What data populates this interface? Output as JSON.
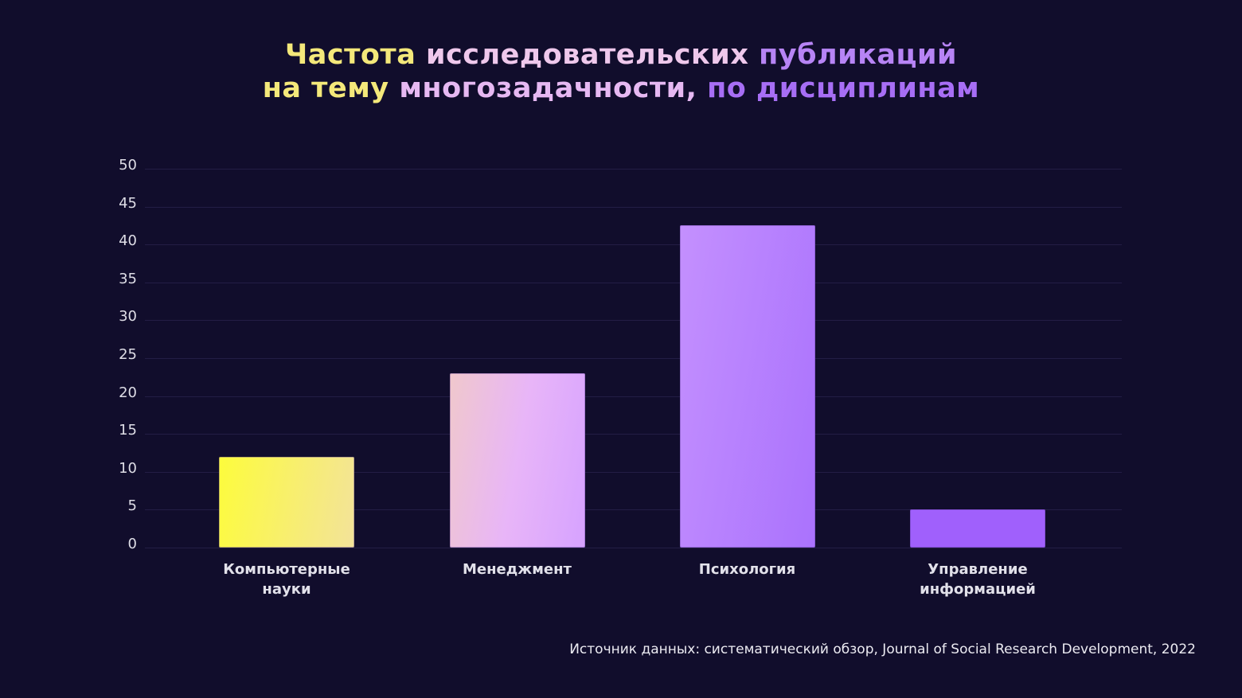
{
  "title": {
    "line1": [
      {
        "text": "Частота ",
        "color": "#f4e87a"
      },
      {
        "text": "исследовательских ",
        "color": "#efc8ec"
      },
      {
        "text": "публикаций",
        "color": "#b784f5"
      }
    ],
    "line2": [
      {
        "text": "на тему ",
        "color": "#f4e87a"
      },
      {
        "text": "многозадачности, ",
        "color": "#e6b8f2"
      },
      {
        "text": "по дисциплинам",
        "color": "#a76ef5"
      }
    ]
  },
  "source": "Источник данных: систематический обзор, Journal of Social Research Development, 2022",
  "colors": {
    "background": "#110d2c",
    "grid": "#231d45",
    "bar_gradients": [
      [
        "#fdfc3c",
        "#f3e39a"
      ],
      [
        "#f0c8cc",
        "#e8b5f8",
        "#d6a2ff"
      ],
      [
        "#c490fe",
        "#aa72fd"
      ],
      [
        "#a060fc",
        "#a060fc"
      ]
    ]
  },
  "chart_data": {
    "type": "bar",
    "title": "Частота исследовательских публикаций на тему многозадачности, по дисциплинам",
    "categories": [
      "Компьютерные науки",
      "Менеджмент",
      "Психология",
      "Управление информацией"
    ],
    "category_lines": [
      [
        "Компьютерные",
        "науки"
      ],
      [
        "Менеджмент"
      ],
      [
        "Психология"
      ],
      [
        "Управление",
        "информацией"
      ]
    ],
    "values": [
      12,
      23,
      42.5,
      5
    ],
    "xlabel": "",
    "ylabel": "",
    "ylim": [
      0,
      50
    ],
    "yticks": [
      0,
      5,
      10,
      15,
      20,
      25,
      30,
      35,
      40,
      45,
      50
    ],
    "grid": true,
    "legend": null,
    "source": "Источник данных: систематический обзор, Journal of Social Research Development, 2022"
  }
}
